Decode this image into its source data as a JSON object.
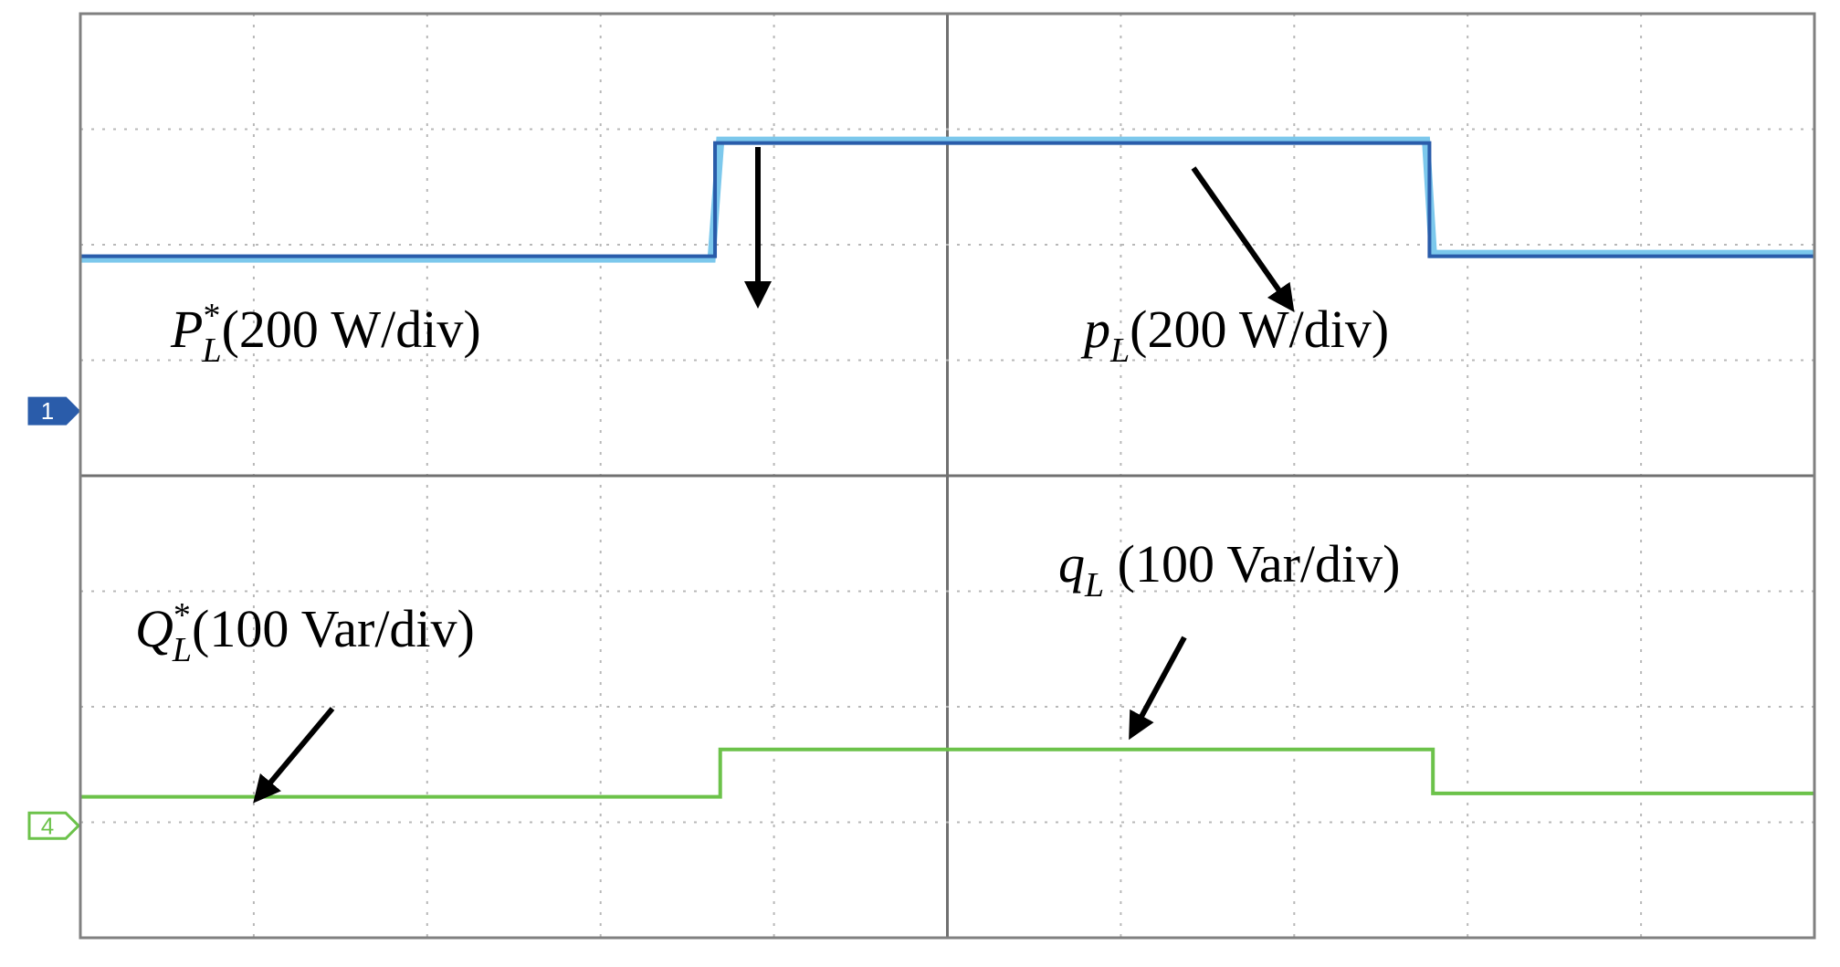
{
  "chart_data": {
    "type": "line",
    "xlim": [
      0,
      10
    ],
    "ylim": [
      0,
      8
    ],
    "xdivisions": 10,
    "ydivisions": 8,
    "series": [
      {
        "color": "#7cc8ec",
        "x": [
          0,
          3.64,
          3.69,
          7.76,
          7.8,
          10
        ],
        "values": [
          5.88,
          5.88,
          6.9,
          6.9,
          5.92,
          5.92
        ]
      },
      {
        "color": "#2a5caa",
        "x": [
          0,
          3.66,
          3.66,
          7.78,
          7.78,
          10
        ],
        "values": [
          5.9,
          5.9,
          6.88,
          6.88,
          5.9,
          5.9
        ]
      },
      {
        "color": "#6cc24a",
        "x": [
          0,
          3.69,
          3.69,
          7.8,
          7.8,
          10
        ],
        "values": [
          1.22,
          1.22,
          1.63,
          1.63,
          1.25,
          1.25
        ]
      }
    ],
    "channel_markers": [
      {
        "label": "1",
        "color": "#2a5caa",
        "level": 4.56
      },
      {
        "label": "4",
        "color": "#6cc24a",
        "level": 0.97
      }
    ],
    "annotations": [
      {
        "symbol": "P",
        "sup": "*",
        "sub": "L",
        "text": "(200 W/div)"
      },
      {
        "symbol": "p",
        "sub": "L",
        "text": "(200 W/div)"
      },
      {
        "symbol": "Q",
        "sup": "*",
        "sub": "L",
        "text": "(100 Var/div)"
      },
      {
        "symbol": "q",
        "sub": "L",
        "text": " (100 Var/div)"
      }
    ]
  }
}
